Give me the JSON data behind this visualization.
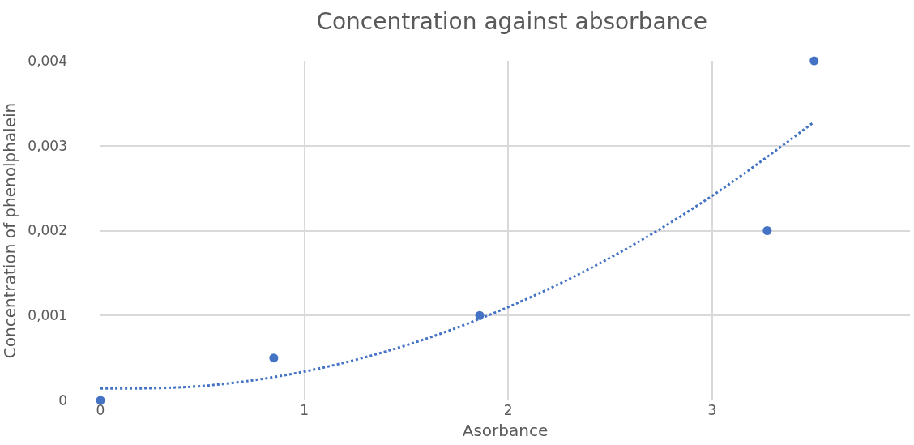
{
  "chart_data": {
    "type": "scatter",
    "title": "Concentration against absorbance",
    "xlabel": "Asorbance",
    "ylabel": "Concentration of phenolphalein",
    "series": [
      {
        "color": "#4472c4",
        "marker": "circle",
        "x": [
          0,
          0.85,
          1.86,
          3.27,
          3.5
        ],
        "values": [
          0,
          0.0005,
          0.001,
          0.002,
          0.004
        ]
      },
      {
        "type": "line",
        "color": "#4472c4",
        "line_style": "dotted",
        "x": [
          0,
          0.5,
          1,
          1.5,
          2,
          2.5,
          3,
          3.5
        ],
        "values": [
          0.00014,
          0.00017,
          0.00034,
          0.00065,
          0.0011,
          0.00168,
          0.00241,
          0.00328
        ]
      }
    ],
    "xlim": [
      0,
      3.97
    ],
    "xticks": [
      0,
      1,
      2,
      3
    ],
    "ylim": [
      0,
      0.004
    ],
    "yticks": [
      0,
      {
        "value": 0.001,
        "label": "0,001"
      },
      {
        "value": 0.002,
        "label": "0,002"
      },
      {
        "value": 0.003,
        "label": "0,003"
      },
      {
        "value": 0.004,
        "label": "0,004"
      }
    ],
    "grid": true
  }
}
